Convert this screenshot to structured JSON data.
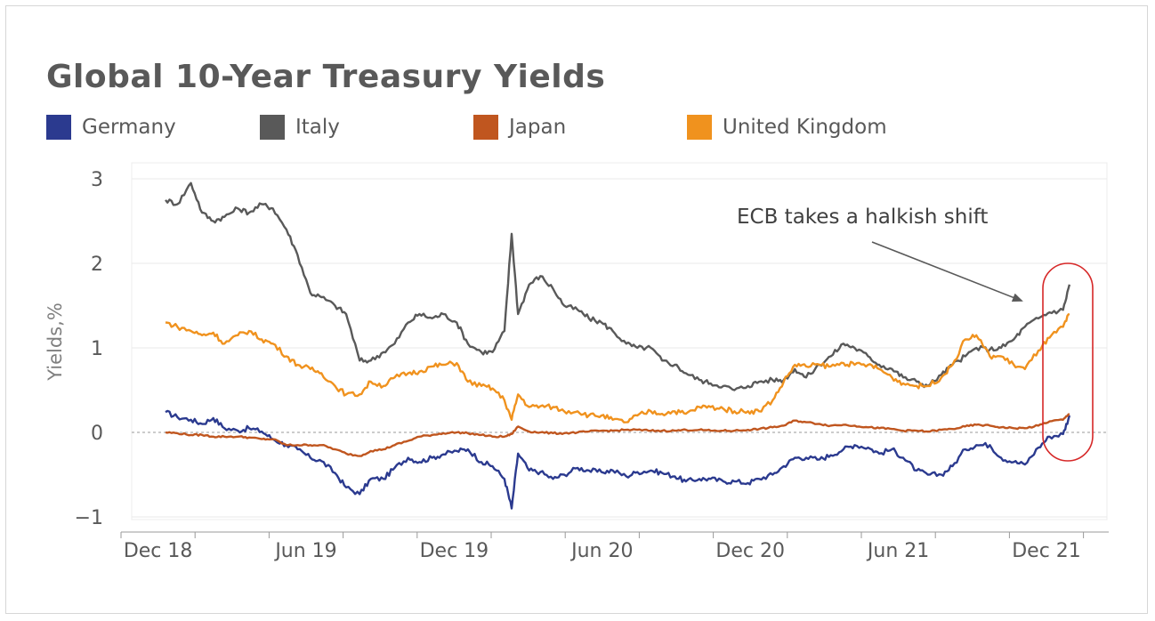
{
  "chart_data": {
    "type": "line",
    "title": "Global 10-Year Treasury Yields",
    "ylabel": "Yields,%",
    "xlabel": "",
    "x_tick_labels": [
      "Dec 18",
      "Jun 19",
      "Dec 19",
      "Jun 20",
      "Dec 20",
      "Jun 21",
      "Dec 21"
    ],
    "y_tick_labels": [
      "3",
      "2",
      "1",
      "0",
      "−1"
    ],
    "y_ticks": [
      3,
      2,
      1,
      0,
      -1
    ],
    "ylim": [
      -1,
      3
    ],
    "grid": true,
    "legend_position": "top-left",
    "annotation": "ECB takes a halkish shift",
    "dates": [
      "2018-12-31",
      "2019-01-15",
      "2019-02-01",
      "2019-02-15",
      "2019-03-01",
      "2019-03-15",
      "2019-04-01",
      "2019-04-15",
      "2019-05-01",
      "2019-05-15",
      "2019-06-01",
      "2019-06-15",
      "2019-07-01",
      "2019-07-15",
      "2019-08-01",
      "2019-08-15",
      "2019-09-01",
      "2019-09-15",
      "2019-10-01",
      "2019-10-15",
      "2019-11-01",
      "2019-11-15",
      "2019-12-01",
      "2019-12-15",
      "2020-01-01",
      "2020-01-15",
      "2020-02-01",
      "2020-02-15",
      "2020-03-01",
      "2020-03-10",
      "2020-03-18",
      "2020-04-01",
      "2020-04-15",
      "2020-05-01",
      "2020-05-15",
      "2020-06-01",
      "2020-06-15",
      "2020-07-01",
      "2020-07-15",
      "2020-08-01",
      "2020-08-15",
      "2020-09-01",
      "2020-09-15",
      "2020-10-01",
      "2020-10-15",
      "2020-11-01",
      "2020-11-15",
      "2020-12-01",
      "2020-12-15",
      "2021-01-01",
      "2021-01-15",
      "2021-02-01",
      "2021-02-15",
      "2021-03-01",
      "2021-03-15",
      "2021-04-01",
      "2021-04-15",
      "2021-05-01",
      "2021-05-15",
      "2021-06-01",
      "2021-06-15",
      "2021-07-01",
      "2021-07-15",
      "2021-08-01",
      "2021-08-15",
      "2021-09-01",
      "2021-09-15",
      "2021-10-01",
      "2021-10-15",
      "2021-11-01",
      "2021-11-15",
      "2021-12-01",
      "2021-12-15",
      "2022-01-01",
      "2022-01-15",
      "2022-02-01",
      "2022-02-09"
    ],
    "series": [
      {
        "name": "Germany",
        "color": "#2b3a8f",
        "values": [
          0.24,
          0.18,
          0.15,
          0.1,
          0.17,
          0.05,
          0.02,
          0.05,
          0.01,
          -0.08,
          -0.15,
          -0.2,
          -0.3,
          -0.34,
          -0.48,
          -0.65,
          -0.73,
          -0.55,
          -0.55,
          -0.42,
          -0.3,
          -0.35,
          -0.3,
          -0.26,
          -0.22,
          -0.2,
          -0.35,
          -0.4,
          -0.55,
          -0.9,
          -0.25,
          -0.45,
          -0.47,
          -0.55,
          -0.5,
          -0.42,
          -0.45,
          -0.47,
          -0.45,
          -0.52,
          -0.47,
          -0.45,
          -0.48,
          -0.52,
          -0.58,
          -0.55,
          -0.55,
          -0.58,
          -0.58,
          -0.6,
          -0.55,
          -0.5,
          -0.4,
          -0.3,
          -0.3,
          -0.32,
          -0.27,
          -0.2,
          -0.15,
          -0.18,
          -0.25,
          -0.2,
          -0.3,
          -0.45,
          -0.5,
          -0.5,
          -0.4,
          -0.2,
          -0.15,
          -0.15,
          -0.3,
          -0.35,
          -0.38,
          -0.18,
          -0.05,
          -0.02,
          0.2
        ]
      },
      {
        "name": "Italy",
        "color": "#595959",
        "values": [
          2.75,
          2.7,
          2.95,
          2.6,
          2.5,
          2.55,
          2.65,
          2.6,
          2.7,
          2.65,
          2.4,
          2.1,
          1.65,
          1.6,
          1.5,
          1.4,
          0.85,
          0.85,
          0.95,
          1.05,
          1.3,
          1.4,
          1.35,
          1.4,
          1.3,
          1.05,
          0.95,
          0.95,
          1.2,
          2.35,
          1.4,
          1.75,
          1.85,
          1.7,
          1.5,
          1.45,
          1.35,
          1.3,
          1.2,
          1.05,
          1.0,
          1.0,
          0.85,
          0.8,
          0.7,
          0.62,
          0.58,
          0.55,
          0.5,
          0.55,
          0.6,
          0.62,
          0.62,
          0.75,
          0.65,
          0.8,
          0.9,
          1.05,
          1.0,
          0.9,
          0.8,
          0.75,
          0.65,
          0.6,
          0.55,
          0.68,
          0.8,
          0.9,
          1.0,
          0.98,
          1.0,
          1.1,
          1.25,
          1.35,
          1.42,
          1.45,
          1.75
        ]
      },
      {
        "name": "Japan",
        "color": "#c0561f",
        "values": [
          0.0,
          -0.01,
          -0.03,
          -0.03,
          -0.05,
          -0.05,
          -0.05,
          -0.06,
          -0.08,
          -0.08,
          -0.15,
          -0.15,
          -0.15,
          -0.15,
          -0.2,
          -0.25,
          -0.28,
          -0.22,
          -0.2,
          -0.15,
          -0.1,
          -0.05,
          -0.03,
          -0.01,
          0.0,
          -0.01,
          -0.03,
          -0.05,
          -0.05,
          -0.02,
          0.07,
          0.01,
          0.0,
          -0.01,
          -0.01,
          0.0,
          0.01,
          0.02,
          0.02,
          0.03,
          0.03,
          0.02,
          0.02,
          0.02,
          0.03,
          0.03,
          0.02,
          0.02,
          0.02,
          0.03,
          0.04,
          0.06,
          0.08,
          0.14,
          0.12,
          0.1,
          0.08,
          0.09,
          0.08,
          0.06,
          0.05,
          0.04,
          0.02,
          0.02,
          0.01,
          0.03,
          0.04,
          0.07,
          0.09,
          0.08,
          0.06,
          0.05,
          0.05,
          0.08,
          0.13,
          0.15,
          0.22
        ]
      },
      {
        "name": "United Kingdom",
        "color": "#f0921e",
        "values": [
          1.3,
          1.25,
          1.2,
          1.15,
          1.18,
          1.05,
          1.15,
          1.2,
          1.1,
          1.05,
          0.9,
          0.8,
          0.75,
          0.7,
          0.55,
          0.45,
          0.45,
          0.6,
          0.55,
          0.65,
          0.7,
          0.72,
          0.78,
          0.8,
          0.82,
          0.6,
          0.55,
          0.52,
          0.38,
          0.15,
          0.45,
          0.3,
          0.31,
          0.3,
          0.25,
          0.25,
          0.2,
          0.2,
          0.15,
          0.12,
          0.2,
          0.25,
          0.22,
          0.25,
          0.22,
          0.3,
          0.3,
          0.28,
          0.25,
          0.25,
          0.25,
          0.38,
          0.6,
          0.8,
          0.78,
          0.8,
          0.78,
          0.82,
          0.8,
          0.8,
          0.75,
          0.65,
          0.58,
          0.55,
          0.55,
          0.65,
          0.8,
          1.1,
          1.15,
          0.9,
          0.9,
          0.8,
          0.75,
          0.97,
          1.12,
          1.25,
          1.4
        ]
      }
    ]
  }
}
